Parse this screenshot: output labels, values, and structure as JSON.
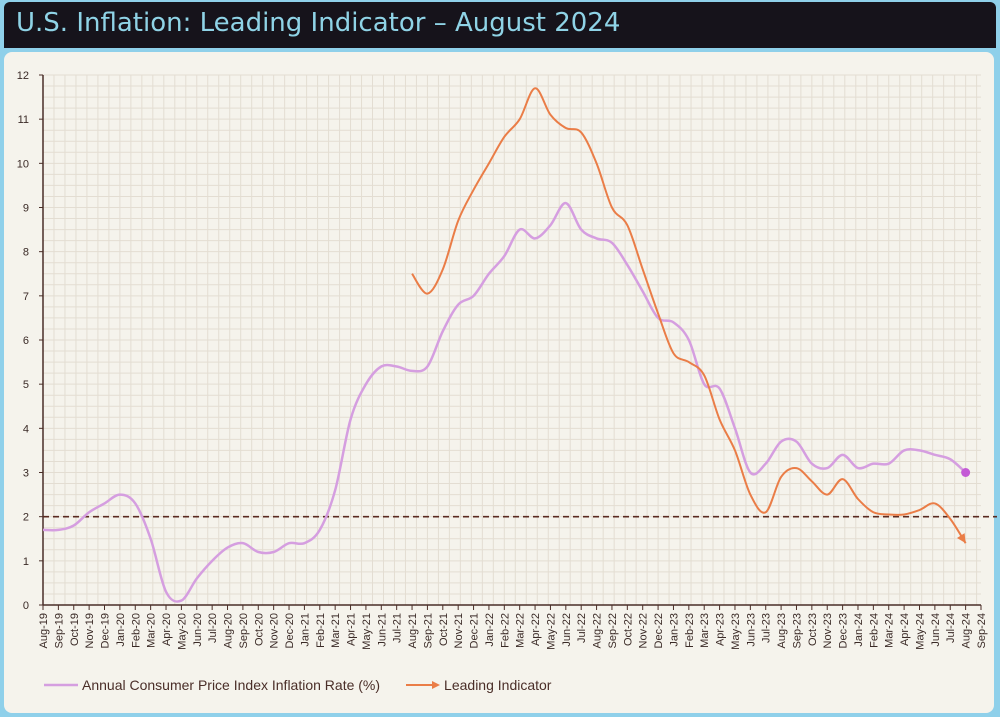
{
  "title": "U.S. Inflation: Leading Indicator – August 2024",
  "chart_data": {
    "type": "line",
    "title": "U.S. Inflation: Leading Indicator – August 2024",
    "xlabel": "",
    "ylabel": "",
    "ylim": [
      0,
      12
    ],
    "yticks": [
      "0",
      "1",
      "2",
      "3",
      "4",
      "5",
      "6",
      "7",
      "8",
      "9",
      "10",
      "11",
      "12"
    ],
    "grid": true,
    "legend_position": "bottom-left",
    "reference_line": {
      "y": 2,
      "style": "dashed",
      "color": "#5a2a20"
    },
    "categories": [
      "Aug-19",
      "Sep-19",
      "Oct-19",
      "Nov-19",
      "Dec-19",
      "Jan-20",
      "Feb-20",
      "Mar-20",
      "Apr-20",
      "May-20",
      "Jun-20",
      "Jul-20",
      "Aug-20",
      "Sep-20",
      "Oct-20",
      "Nov-20",
      "Dec-20",
      "Jan-21",
      "Feb-21",
      "Mar-21",
      "Apr-21",
      "May-21",
      "Jun-21",
      "Jul-21",
      "Aug-21",
      "Sep-21",
      "Oct-21",
      "Nov-21",
      "Dec-21",
      "Jan-22",
      "Feb-22",
      "Mar-22",
      "Apr-22",
      "May-22",
      "Jun-22",
      "Jul-22",
      "Aug-22",
      "Sep-22",
      "Oct-22",
      "Nov-22",
      "Dec-22",
      "Jan-23",
      "Feb-23",
      "Mar-23",
      "Apr-23",
      "May-23",
      "Jun-23",
      "Jul-23",
      "Aug-23",
      "Sep-23",
      "Oct-23",
      "Nov-23",
      "Dec-23",
      "Jan-24",
      "Feb-24",
      "Mar-24",
      "Apr-24",
      "May-24",
      "Jun-24",
      "Jul-24",
      "Aug-24",
      "Sep-24"
    ],
    "series": [
      {
        "name": "Annual Consumer Price Index Inflation Rate (%)",
        "color": "#d59ee0",
        "end_marker_color": "#c45ad6",
        "values": [
          1.7,
          1.7,
          1.8,
          2.1,
          2.3,
          2.5,
          2.3,
          1.5,
          0.3,
          0.1,
          0.6,
          1.0,
          1.3,
          1.4,
          1.2,
          1.2,
          1.4,
          1.4,
          1.7,
          2.6,
          4.2,
          5.0,
          5.4,
          5.4,
          5.3,
          5.4,
          6.2,
          6.8,
          7.0,
          7.5,
          7.9,
          8.5,
          8.3,
          8.6,
          9.1,
          8.5,
          8.3,
          8.2,
          7.7,
          7.1,
          6.5,
          6.4,
          6.0,
          5.0,
          4.9,
          4.0,
          3.0,
          3.2,
          3.7,
          3.7,
          3.2,
          3.1,
          3.4,
          3.1,
          3.2,
          3.2,
          3.5,
          3.5,
          3.4,
          3.3,
          3.0,
          null
        ]
      },
      {
        "name": "Leading Indicator",
        "color": "#ea7d47",
        "values": [
          null,
          null,
          null,
          null,
          null,
          null,
          null,
          null,
          null,
          null,
          null,
          null,
          null,
          null,
          null,
          null,
          null,
          null,
          null,
          null,
          null,
          null,
          null,
          null,
          7.5,
          7.05,
          7.6,
          8.7,
          9.4,
          10.0,
          10.6,
          11.0,
          11.7,
          11.1,
          10.8,
          10.7,
          10.0,
          9.0,
          8.6,
          7.6,
          6.6,
          5.7,
          5.5,
          5.2,
          4.2,
          3.5,
          2.5,
          2.1,
          2.9,
          3.1,
          2.8,
          2.5,
          2.85,
          2.4,
          2.1,
          2.05,
          2.05,
          2.15,
          2.3,
          1.95,
          1.4,
          null
        ]
      }
    ]
  }
}
